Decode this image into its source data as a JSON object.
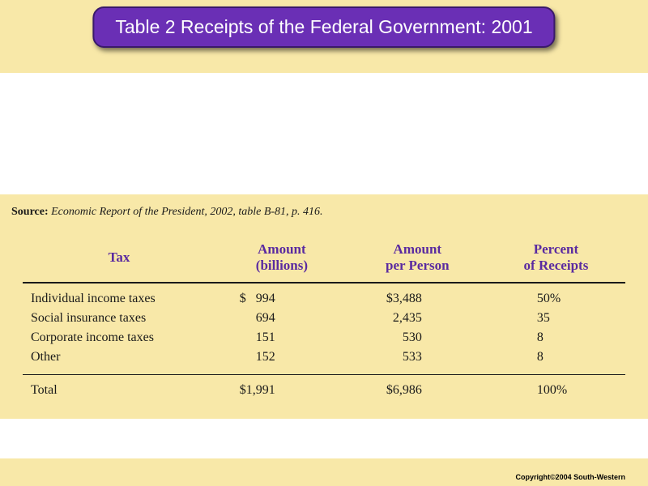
{
  "title": "Table 2 Receipts of the Federal Government: 2001",
  "source": {
    "label": "Source:",
    "text": "Economic Report of the President, 2002, table B-81, p. 416."
  },
  "table": {
    "headers": {
      "tax": "Tax",
      "amount_line1": "Amount",
      "amount_line2": "(billions)",
      "per_line1": "Amount",
      "per_line2": "per Person",
      "pct_line1": "Percent",
      "pct_line2": "of Receipts"
    },
    "rows": [
      {
        "tax": "Individual income taxes",
        "amount": "$   994",
        "per": "$3,488",
        "pct": "50%"
      },
      {
        "tax": "Social insurance taxes",
        "amount": "694",
        "per": "2,435",
        "pct": "35"
      },
      {
        "tax": "Corporate income taxes",
        "amount": "151",
        "per": "530",
        "pct": "8"
      },
      {
        "tax": "Other",
        "amount": "152",
        "per": "533",
        "pct": "8"
      }
    ],
    "total": {
      "tax": "Total",
      "amount": "$1,991",
      "per": "$6,986",
      "pct": "100%"
    }
  },
  "copyright": "Copyright©2004  South-Western",
  "colors": {
    "band_bg": "#f8e8a8",
    "badge_bg": "#6a2fb5",
    "badge_border": "#3a1a6a",
    "header_text": "#5a2aa0",
    "rule": "#1a1a1a",
    "text": "#1a1a1a"
  }
}
